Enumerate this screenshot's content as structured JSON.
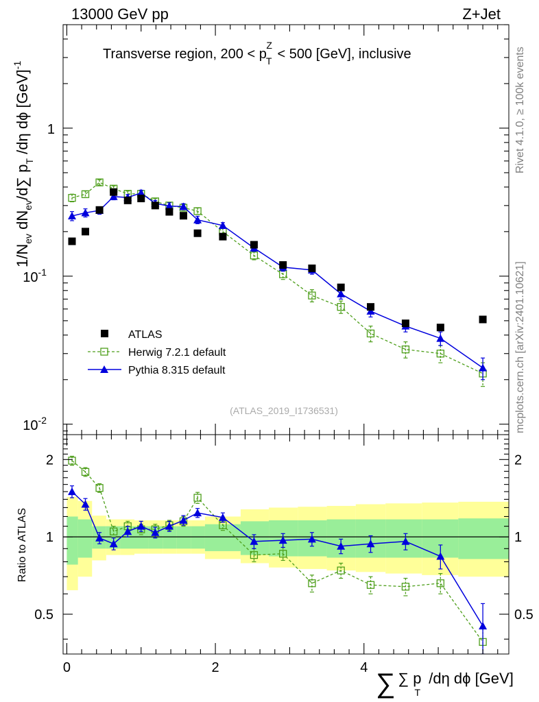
{
  "header": {
    "left": "13000 GeV pp",
    "right": "Z+Jet"
  },
  "side_labels": {
    "rivet": "Rivet 4.1.0, ≥ 100k events",
    "mcplots": "mcplots.cern.ch [arXiv:2401.10621]"
  },
  "colors": {
    "atlas": "#000000",
    "herwig": "#4d9e1a",
    "pythia": "#0000dd",
    "band_inner": "#99ee99",
    "band_outer": "#ffff99"
  },
  "chart_data": [
    {
      "type": "scatter",
      "name": "main",
      "title_parts": {
        "a": "Transverse region, 200 < p",
        "sub": "T",
        "sup": "Z",
        "b": " < 500 [GeV], inclusive"
      },
      "ylabel_parts": {
        "a": "1/N",
        "s1": "ev",
        "b": " dN",
        "s2": "ev",
        "c": "/d∑ p",
        "s3": "T",
        "d": " /dη dϕ  [GeV]",
        "e": "-1"
      },
      "yscale": "log",
      "ylim": [
        0.0085,
        5
      ],
      "xlim": [
        -0.05,
        5.95
      ],
      "yticks": [
        {
          "v": 0.01,
          "m": "10",
          "e": "-2"
        },
        {
          "v": 0.1,
          "m": "10",
          "e": "-1"
        },
        {
          "v": 1,
          "m": "1",
          "e": ""
        }
      ],
      "analysis_label": "(ATLAS_2019_I1736531)",
      "legend": [
        {
          "key": "atlas",
          "label": "ATLAS"
        },
        {
          "key": "herwig",
          "label": "Herwig 7.2.1 default"
        },
        {
          "key": "pythia",
          "label": "Pythia 8.315 default"
        }
      ],
      "series": [
        {
          "key": "atlas",
          "name": "ATLAS",
          "x": [
            0.07,
            0.25,
            0.44,
            0.63,
            0.82,
            1.0,
            1.19,
            1.38,
            1.57,
            1.76,
            2.1,
            2.52,
            2.91,
            3.3,
            3.69,
            4.09,
            4.56,
            5.03,
            5.6
          ],
          "y": [
            0.172,
            0.2,
            0.28,
            0.37,
            0.325,
            0.335,
            0.3,
            0.272,
            0.256,
            0.195,
            0.185,
            0.163,
            0.119,
            0.113,
            0.084,
            0.062,
            0.048,
            0.045,
            0.051
          ],
          "err": [
            0,
            0,
            0,
            0,
            0,
            0,
            0,
            0,
            0,
            0,
            0,
            0,
            0,
            0,
            0,
            0,
            0,
            0,
            0
          ]
        },
        {
          "key": "herwig",
          "name": "Herwig 7.2.1 default",
          "x": [
            0.07,
            0.25,
            0.44,
            0.63,
            0.82,
            1.0,
            1.19,
            1.38,
            1.57,
            1.76,
            2.1,
            2.52,
            2.91,
            3.3,
            3.69,
            4.09,
            4.56,
            5.03,
            5.6
          ],
          "y": [
            0.338,
            0.358,
            0.43,
            0.39,
            0.36,
            0.36,
            0.32,
            0.3,
            0.29,
            0.275,
            0.2,
            0.138,
            0.103,
            0.074,
            0.062,
            0.041,
            0.032,
            0.03,
            0.022
          ],
          "err": [
            0.02,
            0.018,
            0.018,
            0.017,
            0.016,
            0.016,
            0.015,
            0.015,
            0.014,
            0.014,
            0.01,
            0.009,
            0.008,
            0.007,
            0.006,
            0.005,
            0.004,
            0.004,
            0.004
          ]
        },
        {
          "key": "pythia",
          "name": "Pythia 8.315 default",
          "x": [
            0.07,
            0.25,
            0.44,
            0.63,
            0.82,
            1.0,
            1.19,
            1.38,
            1.57,
            1.76,
            2.1,
            2.52,
            2.91,
            3.3,
            3.69,
            4.09,
            4.56,
            5.03,
            5.6
          ],
          "y": [
            0.255,
            0.268,
            0.278,
            0.345,
            0.34,
            0.365,
            0.31,
            0.298,
            0.295,
            0.24,
            0.22,
            0.155,
            0.115,
            0.11,
            0.076,
            0.058,
            0.046,
            0.038,
            0.024
          ],
          "err": [
            0.018,
            0.017,
            0.016,
            0.017,
            0.016,
            0.016,
            0.015,
            0.015,
            0.014,
            0.014,
            0.01,
            0.008,
            0.007,
            0.007,
            0.006,
            0.005,
            0.004,
            0.004,
            0.004
          ]
        }
      ]
    },
    {
      "type": "scatter",
      "name": "ratio",
      "ylabel": "Ratio to ATLAS",
      "yscale": "log",
      "ylim": [
        0.35,
        2.5
      ],
      "xlim": [
        -0.05,
        5.95
      ],
      "xlabel_parts": {
        "a": "∑ p",
        "sub": "T",
        "b": " /dη dϕ [GeV]"
      },
      "xticks": [
        {
          "v": 0,
          "label": "0"
        },
        {
          "v": 2,
          "label": "2"
        },
        {
          "v": 4,
          "label": "4"
        }
      ],
      "yticks": [
        {
          "v": 0.5,
          "label": "0.5"
        },
        {
          "v": 1,
          "label": "1"
        },
        {
          "v": 2,
          "label": "2"
        }
      ],
      "bands": {
        "edges": [
          0.0,
          0.15,
          0.34,
          0.53,
          0.72,
          0.91,
          1.1,
          1.29,
          1.48,
          1.67,
          1.86,
          2.34,
          2.72,
          3.11,
          3.5,
          3.89,
          4.29,
          4.78,
          5.27,
          5.95
        ],
        "inner": [
          [
            0.78,
            1.2
          ],
          [
            0.83,
            1.17
          ],
          [
            0.9,
            1.1
          ],
          [
            0.9,
            1.1
          ],
          [
            0.9,
            1.1
          ],
          [
            0.9,
            1.1
          ],
          [
            0.9,
            1.1
          ],
          [
            0.9,
            1.1
          ],
          [
            0.9,
            1.1
          ],
          [
            0.9,
            1.1
          ],
          [
            0.88,
            1.12
          ],
          [
            0.85,
            1.15
          ],
          [
            0.84,
            1.16
          ],
          [
            0.84,
            1.16
          ],
          [
            0.83,
            1.17
          ],
          [
            0.83,
            1.17
          ],
          [
            0.83,
            1.17
          ],
          [
            0.83,
            1.17
          ],
          [
            0.82,
            1.18
          ]
        ],
        "outer": [
          [
            0.62,
            1.43
          ],
          [
            0.7,
            1.38
          ],
          [
            0.81,
            1.21
          ],
          [
            0.85,
            1.17
          ],
          [
            0.85,
            1.17
          ],
          [
            0.86,
            1.16
          ],
          [
            0.86,
            1.16
          ],
          [
            0.86,
            1.16
          ],
          [
            0.86,
            1.16
          ],
          [
            0.86,
            1.16
          ],
          [
            0.82,
            1.2
          ],
          [
            0.79,
            1.28
          ],
          [
            0.76,
            1.3
          ],
          [
            0.75,
            1.31
          ],
          [
            0.74,
            1.32
          ],
          [
            0.73,
            1.34
          ],
          [
            0.72,
            1.35
          ],
          [
            0.71,
            1.36
          ],
          [
            0.7,
            1.37
          ]
        ]
      },
      "series": [
        {
          "key": "herwig",
          "name": "Herwig 7.2.1 default",
          "x": [
            0.07,
            0.25,
            0.44,
            0.63,
            0.82,
            1.0,
            1.19,
            1.38,
            1.57,
            1.76,
            2.1,
            2.52,
            2.91,
            3.3,
            3.69,
            4.09,
            4.56,
            5.03,
            5.6
          ],
          "y": [
            1.98,
            1.79,
            1.55,
            1.05,
            1.1,
            1.07,
            1.07,
            1.11,
            1.15,
            1.42,
            1.11,
            0.85,
            0.86,
            0.66,
            0.74,
            0.65,
            0.64,
            0.66,
            0.39
          ],
          "err": [
            0.08,
            0.07,
            0.06,
            0.05,
            0.05,
            0.05,
            0.05,
            0.05,
            0.05,
            0.07,
            0.05,
            0.05,
            0.05,
            0.05,
            0.05,
            0.05,
            0.05,
            0.06,
            0.05
          ]
        },
        {
          "key": "pythia",
          "name": "Pythia 8.315 default",
          "x": [
            0.07,
            0.25,
            0.44,
            0.63,
            0.82,
            1.0,
            1.19,
            1.38,
            1.57,
            1.76,
            2.1,
            2.52,
            2.91,
            3.3,
            3.69,
            4.09,
            4.56,
            5.03,
            5.6
          ],
          "y": [
            1.5,
            1.34,
            0.99,
            0.94,
            1.05,
            1.1,
            1.04,
            1.1,
            1.16,
            1.24,
            1.19,
            0.96,
            0.97,
            0.98,
            0.92,
            0.94,
            0.96,
            0.84,
            0.45
          ],
          "err": [
            0.08,
            0.07,
            0.05,
            0.05,
            0.05,
            0.05,
            0.05,
            0.05,
            0.05,
            0.05,
            0.05,
            0.06,
            0.06,
            0.06,
            0.06,
            0.07,
            0.07,
            0.09,
            0.1
          ]
        }
      ]
    }
  ]
}
